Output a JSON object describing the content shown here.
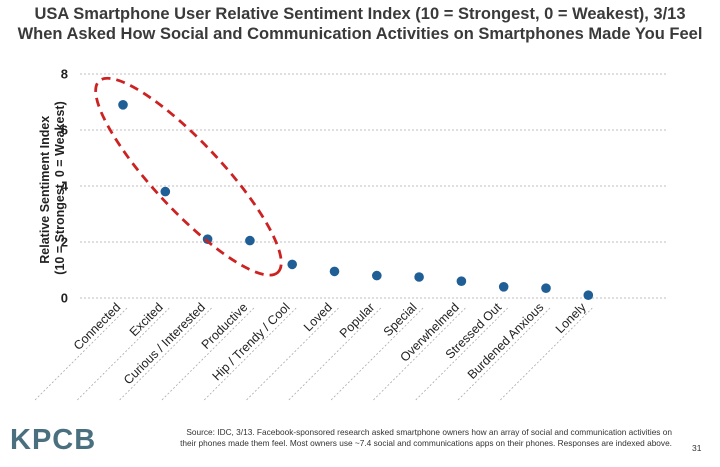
{
  "title_line1": "USA Smartphone User Relative Sentiment Index (10 = Strongest, 0 = Weakest), 3/13",
  "title_line2": "When Asked How Social and Communication Activities on Smartphones Made You Feel",
  "logo": "KPCB",
  "source": "Source: IDC, 3/13. Facebook-sponsored research asked smartphone owners how an array of social and communication activities on their phones made them feel. Most owners use ~7.4 social and communications apps on their phones. Responses are indexed above.",
  "page_number": "31",
  "chart_data": {
    "type": "scatter",
    "ylabel_line1": "Relative Sentiment Index",
    "ylabel_line2": "(10 = Strongest, 0 = Weakest)",
    "categories": [
      "Connected",
      "Excited",
      "Curious / Interested",
      "Productive",
      "Hip / Trendy / Cool",
      "Loved",
      "Popular",
      "Special",
      "Overwhelmed",
      "Stressed Out",
      "Burdened Anxious",
      "Lonely"
    ],
    "values": [
      6.9,
      3.8,
      2.1,
      2.05,
      1.2,
      0.95,
      0.8,
      0.75,
      0.6,
      0.4,
      0.35,
      0.1
    ],
    "ylim": [
      0,
      8
    ],
    "yticks": [
      0,
      2,
      4,
      6,
      8
    ],
    "grid": true,
    "legend": "none",
    "highlight": {
      "shape": "dashed-ellipse",
      "categories": [
        "Connected",
        "Excited",
        "Curious / Interested",
        "Productive"
      ],
      "color": "#cc2222"
    },
    "marker_color": "#1f5f96",
    "grid_color": "#aaaaaa"
  }
}
